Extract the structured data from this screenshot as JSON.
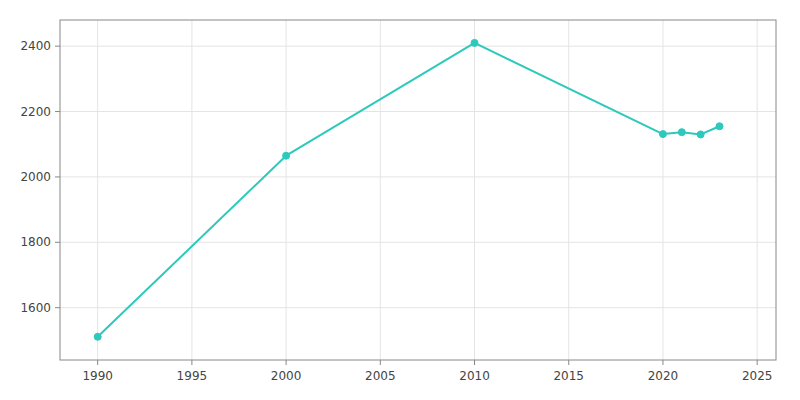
{
  "chart_data": {
    "type": "line",
    "x": [
      1990,
      2000,
      2010,
      2020,
      2021,
      2022,
      2023
    ],
    "values": [
      1511,
      2065,
      2410,
      2131,
      2137,
      2130,
      2155
    ],
    "color": "#2dc9bc",
    "marker": "circle",
    "xlim": [
      1988,
      2026
    ],
    "ylim": [
      1440,
      2480
    ],
    "xticks": [
      1990,
      1995,
      2000,
      2005,
      2010,
      2015,
      2020,
      2025
    ],
    "yticks": [
      1600,
      1800,
      2000,
      2200,
      2400
    ],
    "grid": true
  }
}
